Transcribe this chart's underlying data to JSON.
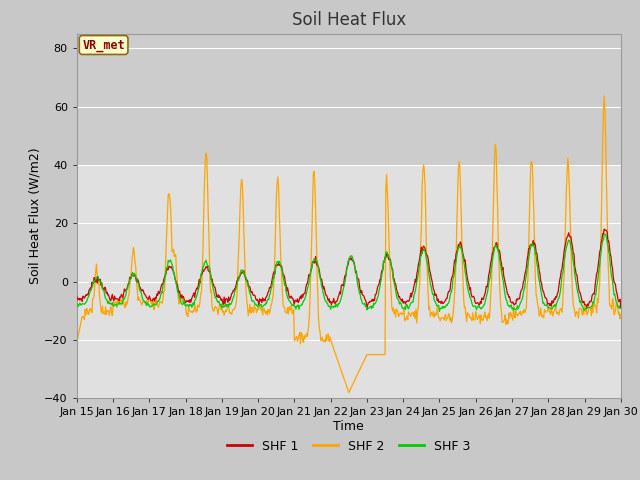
{
  "title": "Soil Heat Flux",
  "xlabel": "Time",
  "ylabel": "Soil Heat Flux (W/m2)",
  "ylim": [
    -40,
    85
  ],
  "yticks": [
    -40,
    -20,
    0,
    20,
    40,
    60,
    80
  ],
  "xlim_hours": [
    0,
    360
  ],
  "xtick_positions": [
    0,
    24,
    48,
    72,
    96,
    120,
    144,
    168,
    192,
    216,
    240,
    264,
    288,
    312,
    336,
    360
  ],
  "xtick_labels": [
    "Jan 15",
    "Jan 16",
    "Jan 17",
    "Jan 18",
    "Jan 19",
    "Jan 20",
    "Jan 21",
    "Jan 22",
    "Jan 23",
    "Jan 24",
    "Jan 25",
    "Jan 26",
    "Jan 27",
    "Jan 28",
    "Jan 29",
    "Jan 30"
  ],
  "shf1_color": "#cc0000",
  "shf2_color": "#ffa500",
  "shf3_color": "#00cc00",
  "legend_label1": "SHF 1",
  "legend_label2": "SHF 2",
  "legend_label3": "SHF 3",
  "annotation_text": "VR_met",
  "annotation_fg": "#8b0000",
  "annotation_bg": "#ffffcc",
  "annotation_border": "#8b6914",
  "fig_bg": "#c8c8c8",
  "plot_bg_light": "#e8e8e8",
  "plot_bg_dark": "#d8d8d8",
  "grid_color": "#ffffff",
  "title_fontsize": 12,
  "axis_label_fontsize": 9,
  "tick_fontsize": 8
}
